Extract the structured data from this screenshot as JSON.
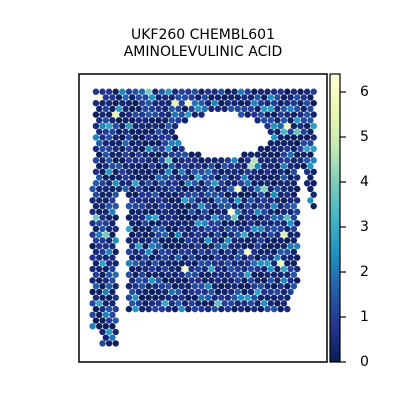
{
  "chart_data": {
    "type": "scatter",
    "title_lines": [
      "UKF260 CHEMBL601",
      "AMINOLEVULINIC ACID"
    ],
    "xlabel": "",
    "ylabel": "",
    "grid": false,
    "colorbar": {
      "colormap": "YlGnBu",
      "range": [
        0,
        6.4
      ],
      "ticks": [
        0,
        1,
        2,
        3,
        4,
        5,
        6
      ],
      "tick_labels": [
        "0",
        "1",
        "2",
        "3",
        "4",
        "5",
        "6"
      ]
    },
    "spots": {
      "shape": "hexagonal grid of spatial spots",
      "value_range_observed": [
        0,
        6.2
      ],
      "typical_value": 0.6,
      "holes": [
        "upper-right tissue gap",
        "narrow vertical gap between left strip and main body"
      ]
    },
    "colors": {
      "low": "#081d58",
      "mid": "#1d91c0",
      "high": "#ffffd9"
    }
  }
}
